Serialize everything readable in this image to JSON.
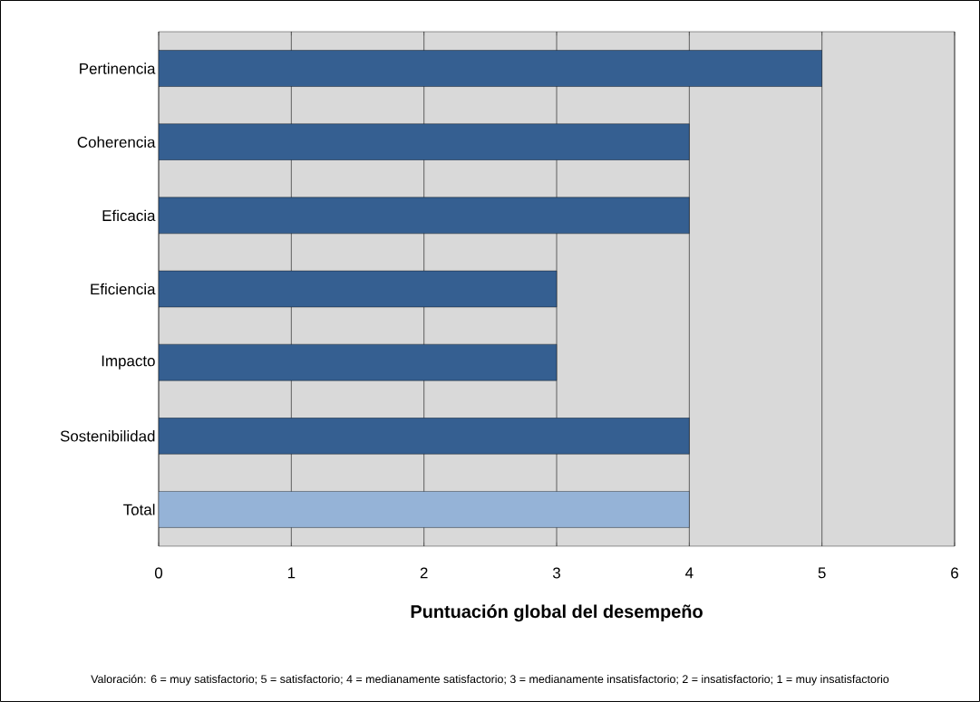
{
  "chart_data": {
    "type": "bar",
    "orientation": "horizontal",
    "categories": [
      "Pertinencia",
      "Coherencia",
      "Eficacia",
      "Eficiencia",
      "Impacto",
      "Sostenibilidad",
      "Total"
    ],
    "values": [
      5,
      4,
      4,
      3,
      3,
      4,
      4
    ],
    "colors": [
      "#355f91",
      "#355f91",
      "#355f91",
      "#355f91",
      "#355f91",
      "#355f91",
      "#95b3d7"
    ],
    "xlim": [
      0,
      6
    ],
    "xticks": [
      0,
      1,
      2,
      3,
      4,
      5,
      6
    ],
    "grid": "x",
    "xlabel": "Puntuación global del desempeño",
    "annotations": [
      "Valoración: 6 = muy satisfactorio; 5 = satisfactorio; 4 = medianamente satisfactorio; 3 = medianamente insatisfactorio; 2 = insatisfactorio; 1 = muy insatisfactorio"
    ]
  }
}
